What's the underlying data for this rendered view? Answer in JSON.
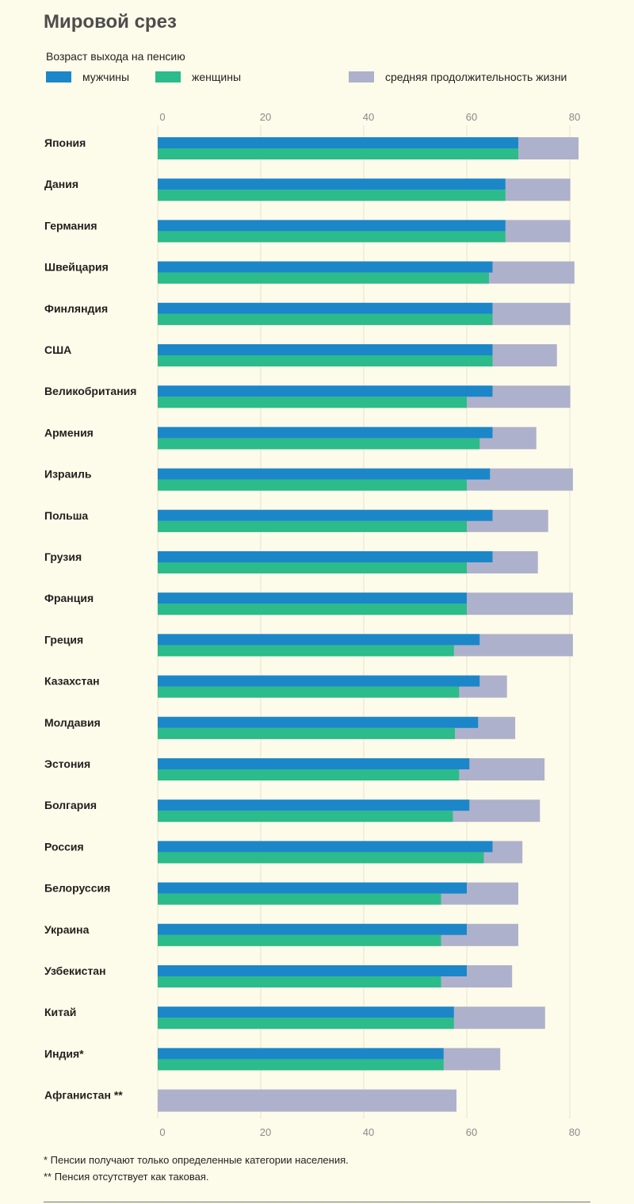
{
  "title": "Мировой срез",
  "subtitle": "Возраст выхода на пенсию",
  "legend": {
    "male": "мужчины",
    "female": "женщины",
    "life": "средняя продолжительность жизни"
  },
  "colors": {
    "male": "#1b87c9",
    "female": "#2cbb8a",
    "life": "#aeb1cb",
    "grid": "#e6e3cf",
    "tick": "#8a8a8a"
  },
  "notes": [
    "* Пенсии получают только определенные категории населения.",
    "** Пенсия отсутствует как таковая."
  ],
  "chart_data": {
    "type": "bar",
    "orientation": "horizontal",
    "xlim": [
      0,
      80
    ],
    "xticks": [
      0,
      20,
      40,
      60,
      80
    ],
    "grid": true,
    "legend_position": "top",
    "categories": [
      "Япония",
      "Дания",
      "Германия",
      "Швейцария",
      "Финляндия",
      "США",
      "Великобритания",
      "Армения",
      "Израиль",
      "Польша",
      "Грузия",
      "Франция",
      "Греция",
      "Казахстан",
      "Молдавия",
      "Эстония",
      "Болгария",
      "Россия",
      "Белоруссия",
      "Украина",
      "Узбекистан",
      "Китай",
      "Индия*",
      "Афганистан **"
    ],
    "series": [
      {
        "name": "мужчины",
        "values": [
          70,
          67.5,
          67.5,
          65,
          65,
          65,
          65,
          65,
          64.5,
          65,
          65,
          60,
          62.5,
          62.5,
          62.2,
          60.5,
          60.5,
          65,
          60,
          60,
          60,
          57.5,
          55.5,
          null
        ]
      },
      {
        "name": "женщины",
        "values": [
          70,
          67.5,
          67.5,
          64.3,
          65,
          65,
          60,
          62.5,
          60,
          60,
          60,
          60,
          57.5,
          58.5,
          57.7,
          58.5,
          57.3,
          63.3,
          55,
          55,
          55,
          57.5,
          55.5,
          null
        ]
      },
      {
        "name": "средняя продолжительность жизни",
        "values": [
          81.7,
          80.1,
          80.1,
          80.9,
          80.1,
          77.5,
          80.1,
          73.5,
          80.6,
          75.8,
          73.8,
          80.6,
          80.6,
          67.8,
          69.4,
          75.1,
          74.2,
          70.8,
          70,
          70,
          68.8,
          75.2,
          66.5,
          58
        ]
      }
    ]
  }
}
